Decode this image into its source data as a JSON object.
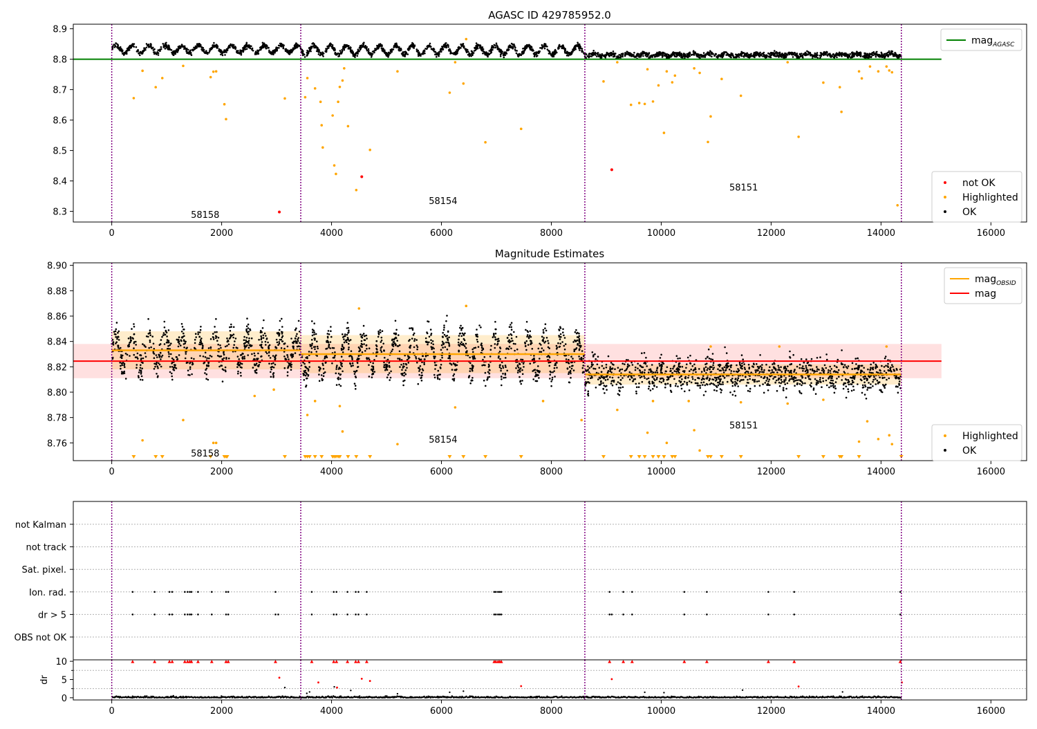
{
  "chart_data": [
    {
      "type": "scatter",
      "title": "AGASC ID 429785952.0",
      "xlim": [
        -700,
        16650
      ],
      "ylim": [
        8.265,
        8.915
      ],
      "xticks": [
        0,
        2000,
        4000,
        6000,
        8000,
        10000,
        12000,
        14000,
        16000
      ],
      "xtick_labels": [
        "0",
        "2000",
        "4000",
        "6000",
        "8000",
        "10000",
        "12000",
        "14000",
        "16000"
      ],
      "yticks": [
        8.3,
        8.4,
        8.5,
        8.6,
        8.7,
        8.8,
        8.9
      ],
      "ytick_labels": [
        "8.3",
        "8.4",
        "8.5",
        "8.6",
        "8.7",
        "8.8",
        "8.9"
      ],
      "obs_boundaries": [
        0,
        3440,
        8610,
        14370
      ],
      "obs_labels": [
        {
          "text": "58158",
          "x": 1700,
          "y": 8.29
        },
        {
          "text": "58154",
          "x": 6030,
          "y": 8.335
        },
        {
          "text": "58151",
          "x": 11500,
          "y": 8.38
        }
      ],
      "agasc_mag": 8.8,
      "agasc_line_x": [
        -700,
        15100
      ],
      "ok_segments": [
        {
          "x0": 0,
          "x1": 3440,
          "mean": 8.833,
          "amp": 0.012,
          "period": 300
        },
        {
          "x0": 3440,
          "x1": 8610,
          "mean": 8.83,
          "amp": 0.015,
          "period": 300
        },
        {
          "x0": 8610,
          "x1": 14370,
          "mean": 8.814,
          "amp": 0.004,
          "period": 300
        }
      ],
      "highlighted": [
        [
          400,
          8.672
        ],
        [
          560,
          8.762
        ],
        [
          800,
          8.708
        ],
        [
          920,
          8.738
        ],
        [
          1300,
          8.778
        ],
        [
          1800,
          8.741
        ],
        [
          1850,
          8.759
        ],
        [
          1900,
          8.76
        ],
        [
          2050,
          8.652
        ],
        [
          2080,
          8.603
        ],
        [
          3150,
          8.671
        ],
        [
          3520,
          8.675
        ],
        [
          3560,
          8.738
        ],
        [
          3700,
          8.704
        ],
        [
          3800,
          8.66
        ],
        [
          3820,
          8.583
        ],
        [
          3840,
          8.51
        ],
        [
          4020,
          8.615
        ],
        [
          4050,
          8.451
        ],
        [
          4080,
          8.423
        ],
        [
          4120,
          8.66
        ],
        [
          4150,
          8.709
        ],
        [
          4200,
          8.73
        ],
        [
          4230,
          8.77
        ],
        [
          4300,
          8.58
        ],
        [
          4450,
          8.37
        ],
        [
          4700,
          8.502
        ],
        [
          5200,
          8.76
        ],
        [
          6150,
          8.69
        ],
        [
          6250,
          8.79
        ],
        [
          6400,
          8.72
        ],
        [
          6450,
          8.866
        ],
        [
          6800,
          8.527
        ],
        [
          7450,
          8.571
        ],
        [
          8950,
          8.727
        ],
        [
          9200,
          8.79
        ],
        [
          9450,
          8.65
        ],
        [
          9600,
          8.656
        ],
        [
          9700,
          8.653
        ],
        [
          9750,
          8.767
        ],
        [
          9850,
          8.661
        ],
        [
          9950,
          8.714
        ],
        [
          10050,
          8.558
        ],
        [
          10100,
          8.76
        ],
        [
          10200,
          8.724
        ],
        [
          10250,
          8.746
        ],
        [
          10600,
          8.77
        ],
        [
          10700,
          8.755
        ],
        [
          10850,
          8.528
        ],
        [
          10900,
          8.612
        ],
        [
          11100,
          8.735
        ],
        [
          11450,
          8.68
        ],
        [
          12300,
          8.79
        ],
        [
          12500,
          8.545
        ],
        [
          12950,
          8.723
        ],
        [
          13250,
          8.708
        ],
        [
          13280,
          8.627
        ],
        [
          13600,
          8.76
        ],
        [
          13650,
          8.737
        ],
        [
          13800,
          8.776
        ],
        [
          13950,
          8.76
        ],
        [
          14100,
          8.776
        ],
        [
          14150,
          8.763
        ],
        [
          14200,
          8.757
        ],
        [
          14300,
          8.32
        ]
      ],
      "not_ok": [
        [
          3050,
          8.298
        ],
        [
          4550,
          8.414
        ],
        [
          9100,
          8.437
        ]
      ],
      "legend": {
        "position": "upper right",
        "entries": [
          {
            "label": "mag",
            "sub": "AGASC",
            "color": "#008000"
          }
        ]
      },
      "legend2": {
        "position": "lower right",
        "entries": [
          {
            "label": "not OK",
            "color": "#ff0000"
          },
          {
            "label": "Highlighted",
            "color": "#ffa500"
          },
          {
            "label": "OK",
            "color": "#000000"
          }
        ]
      }
    },
    {
      "type": "scatter",
      "title": "Magnitude Estimates",
      "xlim": [
        -700,
        16650
      ],
      "ylim": [
        8.746,
        8.902
      ],
      "xticks": [
        0,
        2000,
        4000,
        6000,
        8000,
        10000,
        12000,
        14000,
        16000
      ],
      "xtick_labels": [
        "0",
        "2000",
        "4000",
        "6000",
        "8000",
        "10000",
        "12000",
        "14000",
        "16000"
      ],
      "yticks": [
        8.76,
        8.78,
        8.8,
        8.82,
        8.84,
        8.86,
        8.88,
        8.9
      ],
      "ytick_labels": [
        "8.76",
        "8.78",
        "8.80",
        "8.82",
        "8.84",
        "8.86",
        "8.88",
        "8.90"
      ],
      "obs_boundaries": [
        0,
        3440,
        8610,
        14370
      ],
      "obs_labels": [
        {
          "text": "58158",
          "x": 1700,
          "y": 8.752
        },
        {
          "text": "58154",
          "x": 6030,
          "y": 8.763
        },
        {
          "text": "58151",
          "x": 11500,
          "y": 8.774
        }
      ],
      "mag": 8.8245,
      "mag_band": [
        8.811,
        8.838
      ],
      "mag_line_x": [
        -700,
        15100
      ],
      "obsid_mags": [
        {
          "x0": 0,
          "x1": 3440,
          "mag": 8.833
        },
        {
          "x0": 3440,
          "x1": 8610,
          "mag": 8.83
        },
        {
          "x0": 8610,
          "x1": 14370,
          "mag": 8.814
        }
      ],
      "obsid_bands": [
        {
          "x0": 0,
          "x1": 3440,
          "lo": 8.818,
          "hi": 8.848
        },
        {
          "x0": 3440,
          "x1": 8610,
          "lo": 8.815,
          "hi": 8.845
        },
        {
          "x0": 8610,
          "x1": 14370,
          "lo": 8.806,
          "hi": 8.822
        }
      ],
      "ok_segments": [
        {
          "x0": 0,
          "x1": 3440,
          "mean": 8.833,
          "amp": 0.012,
          "period": 300
        },
        {
          "x0": 3440,
          "x1": 8610,
          "mean": 8.83,
          "amp": 0.015,
          "period": 300
        },
        {
          "x0": 8610,
          "x1": 14370,
          "mean": 8.814,
          "amp": 0.004,
          "period": 300
        }
      ],
      "highlighted": [
        [
          560,
          8.762
        ],
        [
          1300,
          8.778
        ],
        [
          1850,
          8.76
        ],
        [
          1900,
          8.76
        ],
        [
          2600,
          8.797
        ],
        [
          2950,
          8.802
        ],
        [
          3560,
          8.782
        ],
        [
          3700,
          8.793
        ],
        [
          4150,
          8.789
        ],
        [
          4200,
          8.769
        ],
        [
          4500,
          8.866
        ],
        [
          5200,
          8.759
        ],
        [
          6250,
          8.788
        ],
        [
          6450,
          8.868
        ],
        [
          7850,
          8.793
        ],
        [
          8550,
          8.778
        ],
        [
          9200,
          8.786
        ],
        [
          9750,
          8.768
        ],
        [
          9850,
          8.793
        ],
        [
          10100,
          8.76
        ],
        [
          10500,
          8.793
        ],
        [
          10600,
          8.77
        ],
        [
          10700,
          8.754
        ],
        [
          10900,
          8.836
        ],
        [
          11450,
          8.792
        ],
        [
          12150,
          8.836
        ],
        [
          12300,
          8.791
        ],
        [
          12950,
          8.794
        ],
        [
          13600,
          8.761
        ],
        [
          13750,
          8.777
        ],
        [
          13950,
          8.763
        ],
        [
          14100,
          8.836
        ],
        [
          14150,
          8.766
        ],
        [
          14200,
          8.759
        ]
      ],
      "below_range_x": [
        400,
        800,
        920,
        1800,
        2050,
        2080,
        2100,
        3150,
        3520,
        3560,
        3600,
        3700,
        3820,
        4020,
        4050,
        4080,
        4120,
        4150,
        4300,
        4450,
        4700,
        6150,
        6400,
        6800,
        7450,
        8950,
        9450,
        9600,
        9700,
        9850,
        9950,
        10050,
        10200,
        10250,
        10850,
        10900,
        11100,
        11450,
        12500,
        12950,
        13250,
        13280,
        13600,
        14370
      ],
      "legend": {
        "position": "upper right",
        "entries": [
          {
            "label": "mag",
            "sub": "OBSID",
            "color": "#ffa500"
          },
          {
            "label": "mag",
            "color": "#ff0000"
          }
        ]
      },
      "legend2": {
        "position": "lower right",
        "entries": [
          {
            "label": "Highlighted",
            "color": "#ffa500"
          },
          {
            "label": "OK",
            "color": "#000000"
          }
        ]
      }
    },
    {
      "type": "scatter",
      "title": "",
      "xlim": [
        -700,
        16650
      ],
      "categories": [
        "not Kalman",
        "not track",
        "Sat. pixel.",
        "Ion. rad.",
        "dr > 5",
        "OBS not OK"
      ],
      "obs_boundaries": [
        0,
        3440,
        8610,
        14370
      ],
      "flag_points_x": [
        380,
        780,
        1050,
        1100,
        1330,
        1380,
        1420,
        1450,
        1570,
        1820,
        2080,
        2120,
        2980,
        3640,
        4040,
        4090,
        4290,
        4440,
        4490,
        4640,
        6960,
        6990,
        7030,
        7060,
        7090,
        9060,
        9310,
        9470,
        10420,
        10830,
        11950,
        12420,
        14350
      ],
      "dr_extra_x": [
        3030,
        9100
      ]
    },
    {
      "type": "scatter",
      "title": "",
      "xlim": [
        -700,
        16650
      ],
      "ylim": [
        -0.6,
        10.4
      ],
      "ylabel": "dr",
      "xticks": [
        0,
        2000,
        4000,
        6000,
        8000,
        10000,
        12000,
        14000,
        16000
      ],
      "xtick_labels": [
        "0",
        "2000",
        "4000",
        "6000",
        "8000",
        "10000",
        "12000",
        "14000",
        "16000"
      ],
      "yticks": [
        0,
        5,
        10
      ],
      "ytick_labels": [
        "0",
        "5",
        "10"
      ],
      "obs_boundaries": [
        0,
        3440,
        8610,
        14370
      ],
      "clipped_x": [
        380,
        780,
        1050,
        1100,
        1330,
        1380,
        1420,
        1450,
        1570,
        1820,
        2080,
        2120,
        2980,
        3640,
        4040,
        4090,
        4290,
        4440,
        4490,
        4640,
        6960,
        6990,
        7030,
        7060,
        7090,
        9060,
        9310,
        9470,
        10420,
        10830,
        11950,
        12420,
        14350
      ],
      "red_points": [
        [
          3050,
          5.5
        ],
        [
          3760,
          4.2
        ],
        [
          4100,
          2.8
        ],
        [
          4550,
          5.2
        ],
        [
          4700,
          4.6
        ],
        [
          7450,
          3.2
        ],
        [
          9100,
          5.1
        ],
        [
          12500,
          3.1
        ],
        [
          14380,
          4.2
        ]
      ],
      "black_points": [
        [
          3150,
          2.8
        ],
        [
          3550,
          1.2
        ],
        [
          3600,
          1.6
        ],
        [
          4050,
          3.0
        ],
        [
          4350,
          2.0
        ],
        [
          11480,
          2.1
        ],
        [
          5200,
          1.1
        ],
        [
          6150,
          1.5
        ],
        [
          6400,
          1.8
        ],
        [
          9700,
          1.5
        ],
        [
          10050,
          1.4
        ],
        [
          13300,
          1.6
        ]
      ]
    }
  ]
}
